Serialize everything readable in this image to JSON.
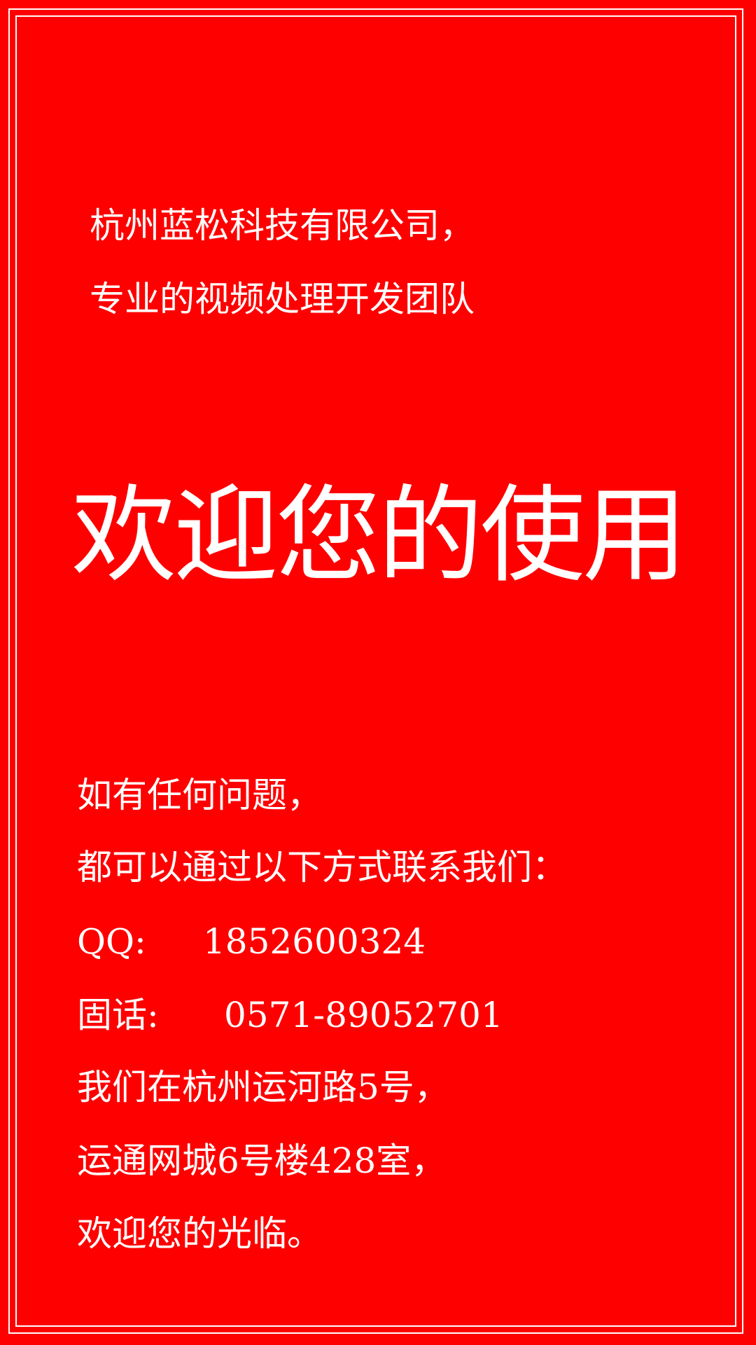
{
  "colors": {
    "background": "#ff0000",
    "text": "#ffffff",
    "border": "#ffffff"
  },
  "intro": {
    "line1": "杭州蓝松科技有限公司，",
    "line2": "专业的视频处理开发团队"
  },
  "headline": "欢迎您的使用",
  "contact": {
    "line1": "如有任何问题，",
    "line2": "都可以通过以下方式联系我们：",
    "qq_label": "QQ:",
    "qq_value": "1852600324",
    "phone_label": "固话:",
    "phone_value": "0571-89052701",
    "address_line1": "我们在杭州运河路5号，",
    "address_line2": "运通网城6号楼428室，",
    "closing": "欢迎您的光临。"
  }
}
